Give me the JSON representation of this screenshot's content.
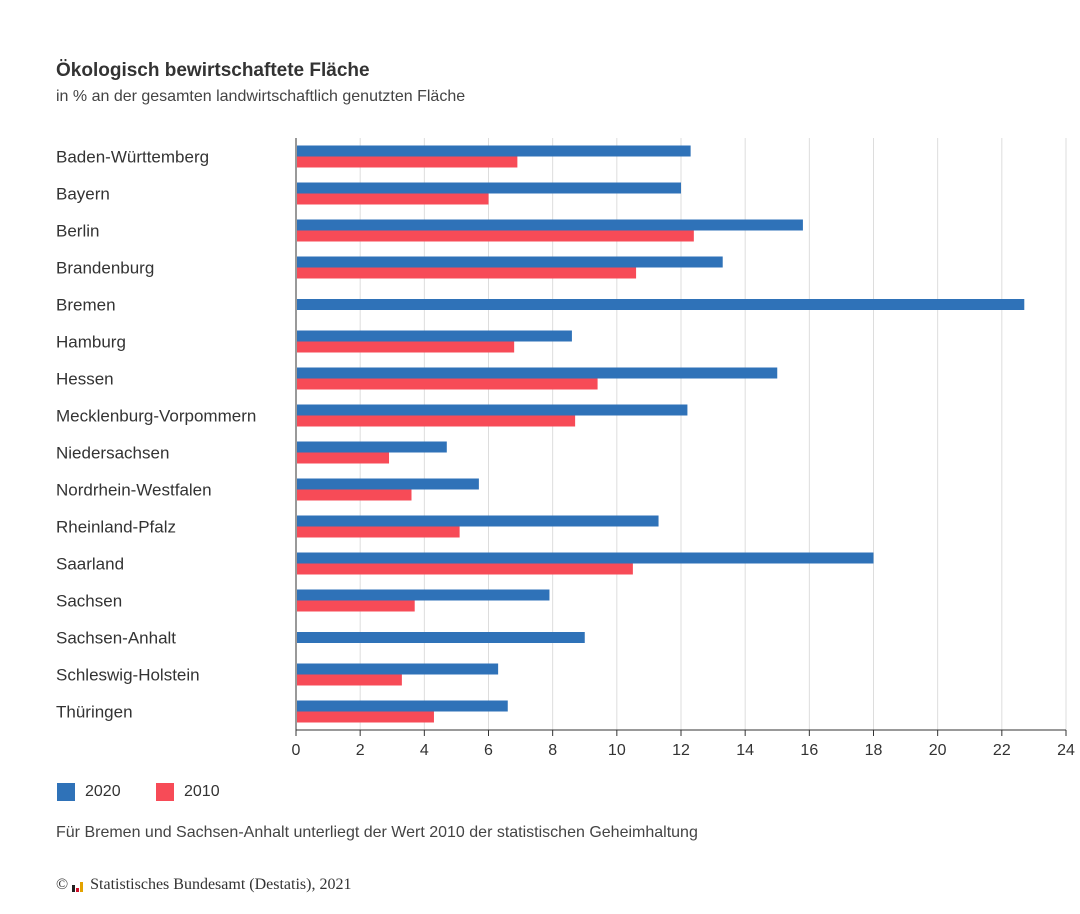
{
  "colors": {
    "2020": "#2f72b8",
    "2010": "#f74b57",
    "grid": "#dddddd",
    "axis": "#333333"
  },
  "chart_data": {
    "type": "bar",
    "orientation": "horizontal",
    "title": "Ökologisch bewirtschaftete Fläche",
    "subtitle": "in % an der gesamten landwirtschaftlich genutzten Fläche",
    "categories": [
      "Baden-Württemberg",
      "Bayern",
      "Berlin",
      "Brandenburg",
      "Bremen",
      "Hamburg",
      "Hessen",
      "Mecklenburg-Vorpommern",
      "Niedersachsen",
      "Nordrhein-Westfalen",
      "Rheinland-Pfalz",
      "Saarland",
      "Sachsen",
      "Sachsen-Anhalt",
      "Schleswig-Holstein",
      "Thüringen"
    ],
    "series": [
      {
        "name": "2020",
        "values": [
          12.3,
          12.0,
          15.8,
          13.3,
          22.7,
          8.6,
          15.0,
          12.2,
          4.7,
          5.7,
          11.3,
          18.0,
          7.9,
          9.0,
          6.3,
          6.6
        ]
      },
      {
        "name": "2010",
        "values": [
          6.9,
          6.0,
          12.4,
          10.6,
          null,
          6.8,
          9.4,
          8.7,
          2.9,
          3.6,
          5.1,
          10.5,
          3.7,
          null,
          3.3,
          4.3
        ]
      }
    ],
    "xlim": [
      0,
      24
    ],
    "xticks": [
      "0",
      "2",
      "4",
      "6",
      "8",
      "10",
      "12",
      "14",
      "16",
      "18",
      "20",
      "22",
      "24"
    ],
    "grid": true,
    "legend_position": "bottom-left"
  },
  "note": "Für Bremen und Sachsen-Anhalt unterliegt der Wert 2010 der statistischen Geheimhaltung",
  "source": {
    "copyright": "©",
    "text": "Statistisches Bundesamt (Destatis), 2021",
    "logo_icon": "destatis-logo-icon"
  }
}
